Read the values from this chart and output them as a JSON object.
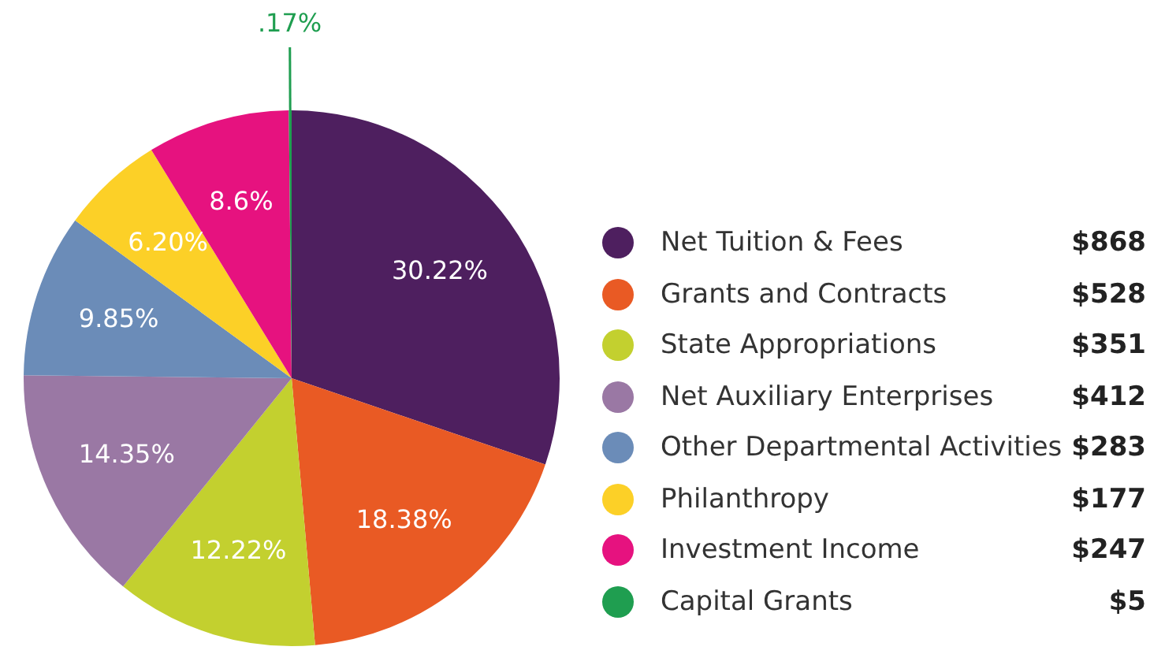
{
  "chart_data": {
    "type": "pie",
    "categories": [
      "Net Tuition & Fees",
      "Grants and Contracts",
      "State Appropriations",
      "Net Auxiliary Enterprises",
      "Other Departmental Activities",
      "Philanthropy",
      "Investment Income",
      "Capital Grants"
    ],
    "values": [
      30.22,
      18.38,
      12.22,
      14.35,
      9.85,
      6.2,
      8.6,
      0.17
    ],
    "colors": [
      "#4e1f5f",
      "#e95a24",
      "#c3d02f",
      "#9a78a4",
      "#6b8cb8",
      "#fcd027",
      "#e6127f",
      "#1f9e50"
    ],
    "value_labels": [
      "30.22%",
      "18.38%",
      "12.22%",
      "14.35%",
      "9.85%",
      "6.20%",
      "8.6%",
      ".17%"
    ],
    "annotations": [
      "$868",
      "$528",
      "$351",
      "$412",
      "$283",
      "$177",
      "$247",
      "$5"
    ],
    "legend": "right"
  }
}
